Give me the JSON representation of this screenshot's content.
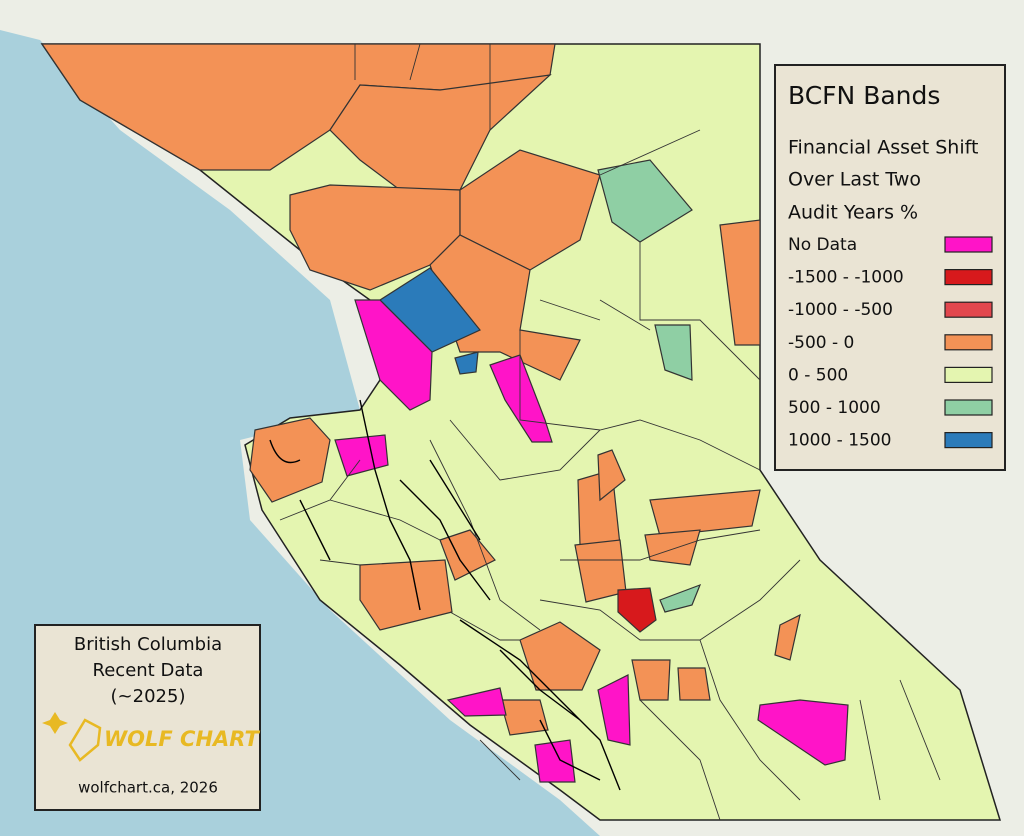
{
  "legend": {
    "title": "BCFN Bands",
    "subtitle": [
      "Financial Asset Shift",
      "Over Last Two",
      "Audit Years %"
    ],
    "items": [
      {
        "label": "No Data",
        "color": "#ff14c8"
      },
      {
        "label": "-1500 - -1000",
        "color": "#d7191c"
      },
      {
        "label": "-1000 - -500",
        "color": "#e2474e"
      },
      {
        "label": "-500 - 0",
        "color": "#f39256"
      },
      {
        "label": "0 - 500",
        "color": "#e4f5b0"
      },
      {
        "label": "500 - 1000",
        "color": "#8fcfa4"
      },
      {
        "label": "1000 - 1500",
        "color": "#2b7bba"
      }
    ]
  },
  "info": {
    "lines": [
      "British Columbia",
      "Recent Data",
      "(~2025)"
    ],
    "logo": "WOLF CHART",
    "credit": "wolfchart.ca, 2026"
  }
}
